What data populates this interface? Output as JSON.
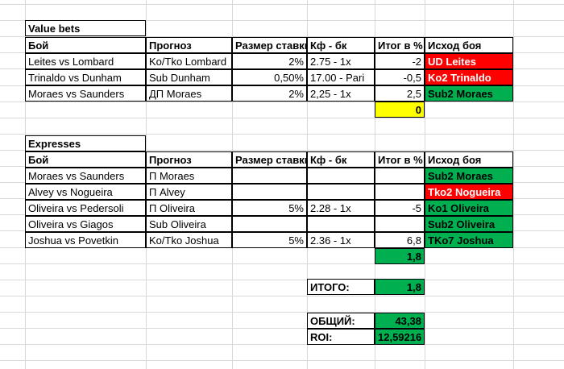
{
  "value_bets": {
    "title": "Value bets",
    "headers": [
      "Бой",
      "Прогноз",
      "Размер ставки",
      "Кф - бк",
      "Итог в %",
      "Исход боя"
    ],
    "rows": [
      [
        "Leites vs Lombard",
        "Ko/Tko Lombard",
        "2%",
        "2.75 - 1x",
        "-2",
        "UD Leites"
      ],
      [
        "Trinaldo vs Dunham",
        "Sub Dunham",
        "0,50%",
        "17.00 - Pari",
        "-0,5",
        "Ko2 Trinaldo"
      ],
      [
        "Moraes vs Saunders",
        "ДП Moraes",
        "2%",
        "2,25 - 1x",
        "2,5",
        "Sub2 Moraes"
      ]
    ],
    "total": "0",
    "outcome_colors": [
      "red",
      "red",
      "green"
    ]
  },
  "expresses": {
    "title": "Expresses",
    "headers": [
      "Бой",
      "Прогноз",
      "Размер ставки",
      "Кф - бк",
      "Итог в %",
      "Исход боя"
    ],
    "rows": [
      [
        "Moraes vs Saunders",
        "П Moraes",
        "",
        "",
        "",
        "Sub2 Moraes"
      ],
      [
        "Alvey vs Nogueira",
        "П Alvey",
        "",
        "",
        "",
        "Tko2 Nogueira"
      ],
      [
        "Oliveira vs Pedersoli",
        "П Oliveira",
        "5%",
        "2.28 - 1x",
        "-5",
        "Ko1 Oliveira"
      ],
      [
        "Oliveira vs Giagos",
        "Sub Oliveira",
        "",
        "",
        "",
        "Sub2 Oliveira"
      ],
      [
        "Joshua vs Povetkin",
        "Ko/Tko Joshua",
        "5%",
        "2.36 - 1x",
        "6,8",
        "TKo7 Joshua"
      ]
    ],
    "total": "1,8",
    "outcome_colors": [
      "green",
      "red",
      "green",
      "green",
      "green"
    ]
  },
  "summary": {
    "itogo_label": "ИТОГО:",
    "itogo_value": "1,8",
    "obshiy_label": "ОБЩИЙ:",
    "obshiy_value": "43,38",
    "roi_label": "ROI:",
    "roi_value": "12,59216"
  },
  "colors": {
    "red": "#ff0000",
    "green": "#00b050",
    "yellow": "#ffff00",
    "grid": "#d9d9d9"
  }
}
